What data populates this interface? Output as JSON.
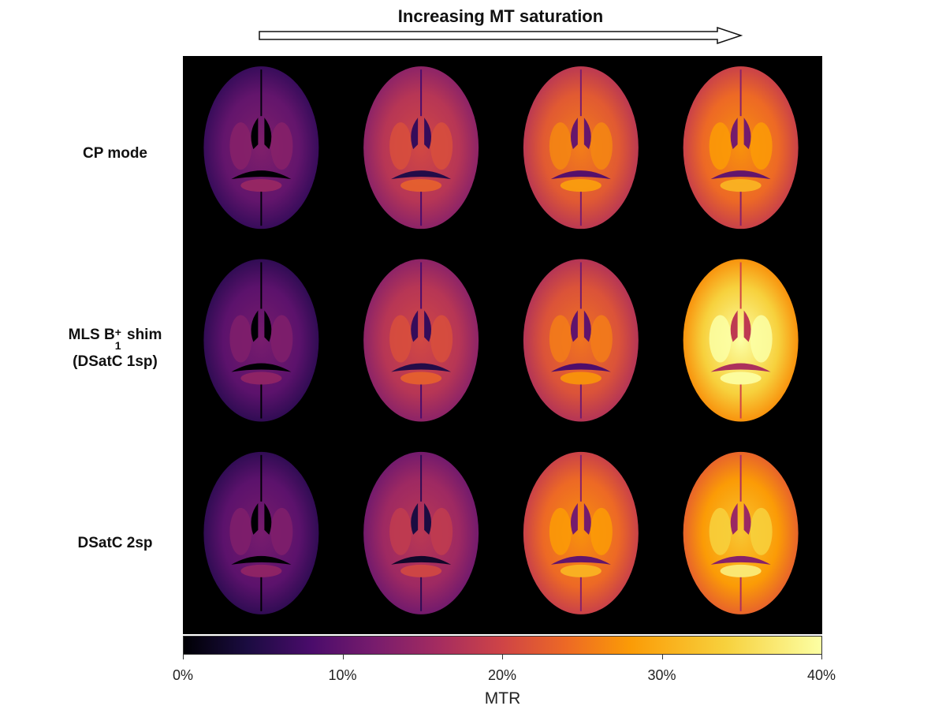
{
  "header": {
    "title": "Increasing MT saturation"
  },
  "rows": [
    {
      "label": "CP mode"
    },
    {
      "label_line1_prefix": "MLS B",
      "label_sup": "+",
      "label_sub": "1",
      "label_line1_suffix": " shim",
      "label_line2": "(DSatC 1sp)"
    },
    {
      "label": "DSatC 2sp"
    }
  ],
  "colorbar": {
    "ticks": [
      "0%",
      "10%",
      "20%",
      "30%",
      "40%"
    ],
    "title": "MTR",
    "colormap": "inferno",
    "range": [
      0,
      40
    ]
  },
  "brain_grid": {
    "columns": 4,
    "rows": 3,
    "intensity": [
      [
        0.32,
        0.55,
        0.68,
        0.72
      ],
      [
        0.3,
        0.55,
        0.66,
        0.92
      ],
      [
        0.3,
        0.48,
        0.72,
        0.82
      ]
    ]
  }
}
